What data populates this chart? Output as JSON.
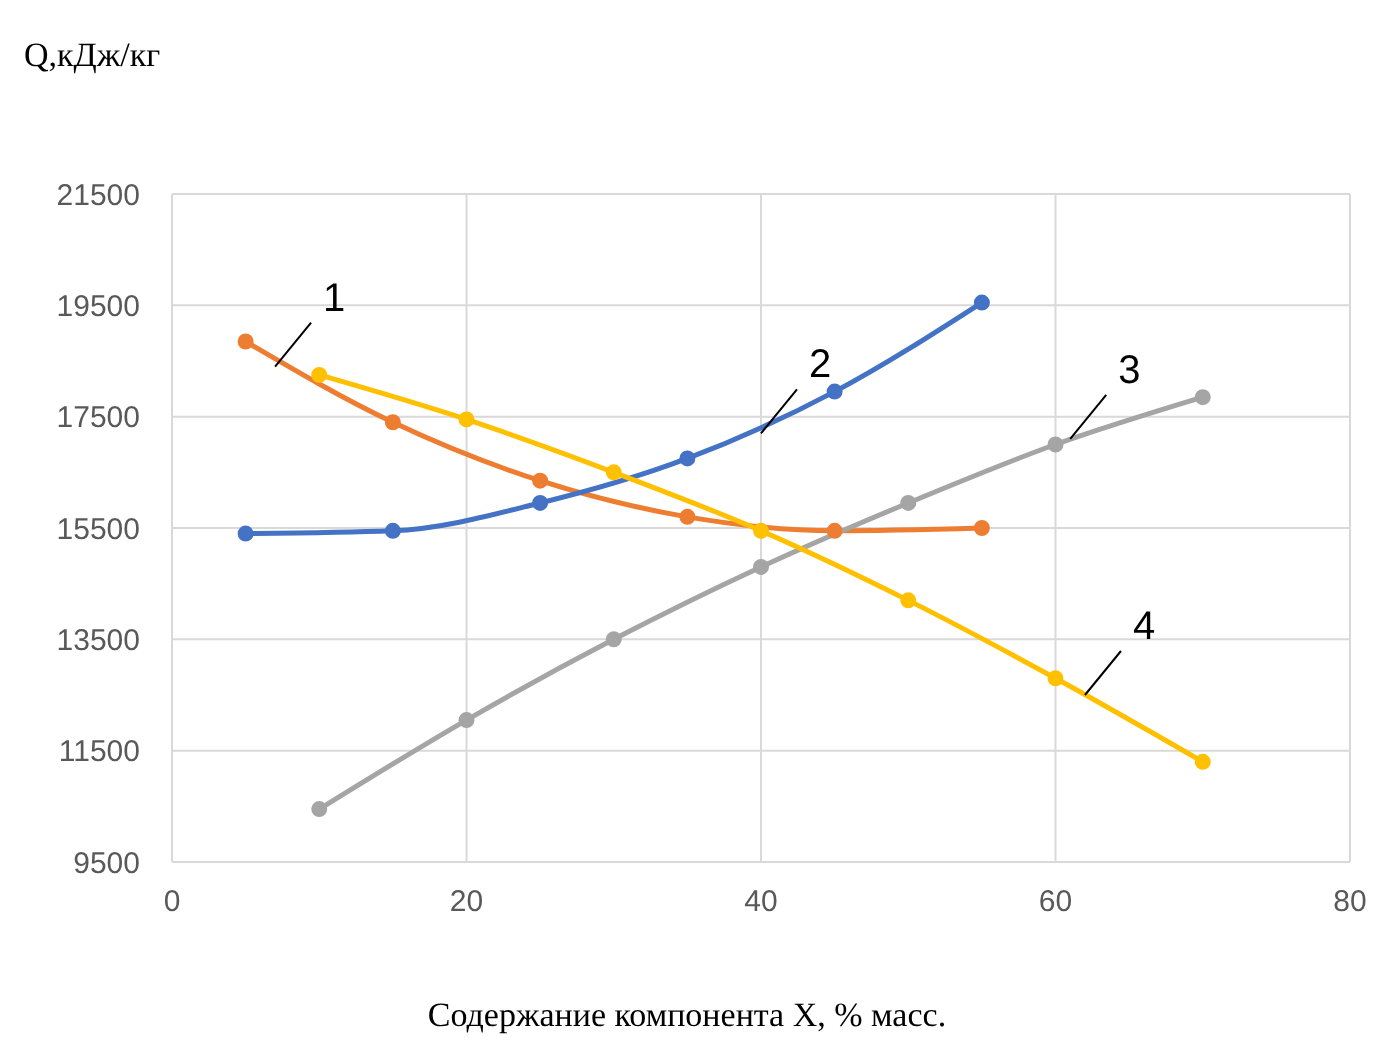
{
  "chart_data": {
    "type": "line",
    "xlabel": "Содержание компонента X, % масс.",
    "ylabel": "Q,кДж/кг",
    "xlim": [
      0,
      80
    ],
    "xticks": [
      0,
      20,
      40,
      60,
      80
    ],
    "ylim": [
      9500,
      21500
    ],
    "yticks": [
      9500,
      11500,
      13500,
      15500,
      17500,
      19500,
      21500
    ],
    "grid": true,
    "legend": false,
    "marker": "circle",
    "line_style": "solid",
    "series": [
      {
        "color": "#ed7d31",
        "x": [
          5,
          15,
          25,
          35,
          45,
          55
        ],
        "values": [
          18850,
          17400,
          16350,
          15700,
          15450,
          15500
        ]
      },
      {
        "color": "#4472c4",
        "x": [
          5,
          15,
          25,
          35,
          45,
          55
        ],
        "values": [
          15400,
          15450,
          15950,
          16750,
          17950,
          19550
        ]
      },
      {
        "color": "#a5a5a5",
        "x": [
          10,
          20,
          30,
          40,
          50,
          60,
          70
        ],
        "values": [
          10450,
          12050,
          13500,
          14800,
          15950,
          17000,
          17850
        ]
      },
      {
        "color": "#ffc000",
        "x": [
          10,
          20,
          30,
          40,
          50,
          60,
          70
        ],
        "values": [
          18250,
          17450,
          16500,
          15450,
          14200,
          12800,
          11300
        ]
      }
    ],
    "annotations": [
      {
        "text": "1",
        "x": 7,
        "y": 18400
      },
      {
        "text": "2",
        "x": 40,
        "y": 17200
      },
      {
        "text": "3",
        "x": 61,
        "y": 17100
      },
      {
        "text": "4",
        "x": 62,
        "y": 12500
      }
    ]
  }
}
